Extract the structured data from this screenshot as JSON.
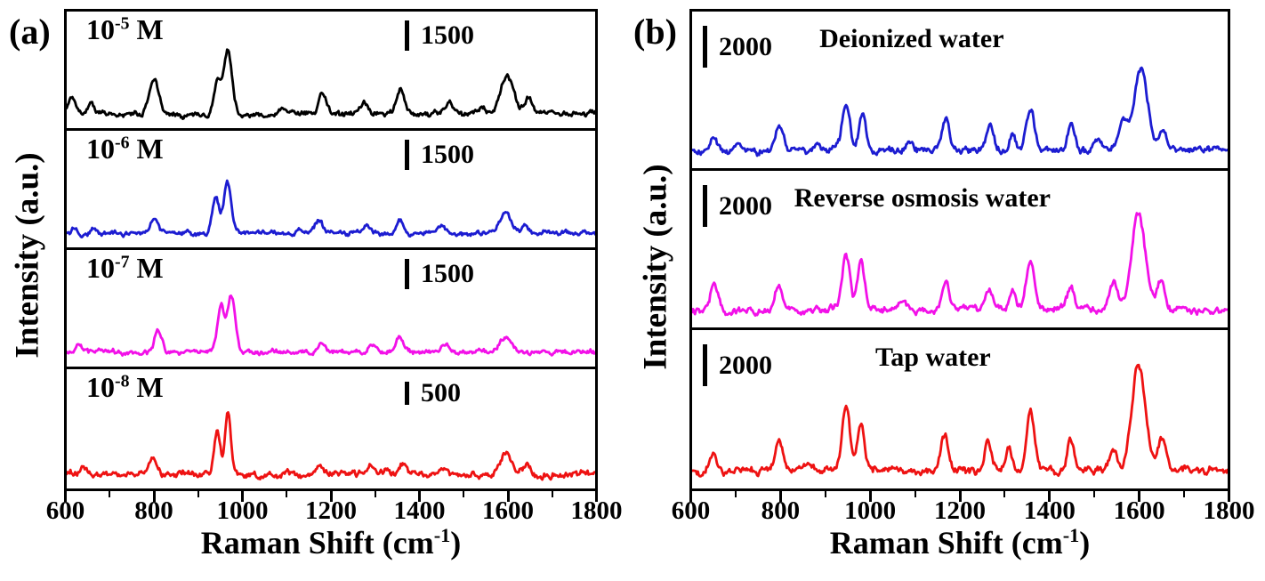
{
  "figure": {
    "panel_a_tag": "(a)",
    "panel_b_tag": "(b)",
    "y_axis_label": "Intensity (a.u.)",
    "x_axis_label": {
      "pre": "Raman Shift (cm",
      "sup": "-1",
      "post": ")"
    }
  },
  "colors": {
    "black": "#000000",
    "blue": "#1c1cd1",
    "magenta": "#f211e8",
    "red": "#ee1212"
  },
  "chart_data": [
    {
      "type": "line",
      "panel": "a",
      "xlabel": "Raman Shift (cm-1)",
      "ylabel": "Intensity (a.u.)",
      "x_range": [
        600,
        1800
      ],
      "x_major_ticks": [
        600,
        800,
        1000,
        1200,
        1400,
        1600,
        1800
      ],
      "x_minor_ticks": [
        700,
        900,
        1100,
        1300,
        1500,
        1700
      ],
      "y_axis": "arbitrary units, stacked offset traces with per-trace intensity scale bars",
      "series": [
        {
          "label": {
            "base": "10",
            "sup": "-5",
            "suffix": " M"
          },
          "color": "#000000",
          "scale_bar": "1500",
          "seed": 11,
          "noise": 3.2,
          "peaks_cm1": [
            [
              612,
              0.28,
              11
            ],
            [
              655,
              0.16,
              9
            ],
            [
              798,
              0.5,
              15
            ],
            [
              942,
              0.52,
              11
            ],
            [
              966,
              1.0,
              13
            ],
            [
              1090,
              0.08,
              12
            ],
            [
              1182,
              0.3,
              13
            ],
            [
              1276,
              0.16,
              11
            ],
            [
              1358,
              0.36,
              13
            ],
            [
              1468,
              0.17,
              13
            ],
            [
              1540,
              0.12,
              12
            ],
            [
              1600,
              0.58,
              20
            ],
            [
              1648,
              0.22,
              13
            ]
          ]
        },
        {
          "label": {
            "base": "10",
            "sup": "-6",
            "suffix": " M"
          },
          "color": "#1c1cd1",
          "scale_bar": "1500",
          "seed": 22,
          "noise": 2.8,
          "peaks_cm1": [
            [
              618,
              0.14,
              10
            ],
            [
              660,
              0.12,
              9
            ],
            [
              800,
              0.3,
              13
            ],
            [
              938,
              0.72,
              11
            ],
            [
              965,
              1.0,
              12
            ],
            [
              1128,
              0.08,
              10
            ],
            [
              1172,
              0.24,
              12
            ],
            [
              1282,
              0.12,
              11
            ],
            [
              1356,
              0.3,
              12
            ],
            [
              1452,
              0.12,
              12
            ],
            [
              1595,
              0.4,
              19
            ],
            [
              1640,
              0.15,
              12
            ]
          ]
        },
        {
          "label": {
            "base": "10",
            "sup": "-7",
            "suffix": " M"
          },
          "color": "#f211e8",
          "scale_bar": "1500",
          "seed": 33,
          "noise": 2.8,
          "peaks_cm1": [
            [
              628,
              0.12,
              10
            ],
            [
              808,
              0.36,
              12
            ],
            [
              950,
              0.8,
              11
            ],
            [
              974,
              1.0,
              12
            ],
            [
              1178,
              0.17,
              12
            ],
            [
              1292,
              0.12,
              11
            ],
            [
              1355,
              0.26,
              12
            ],
            [
              1460,
              0.12,
              13
            ],
            [
              1598,
              0.28,
              20
            ]
          ]
        },
        {
          "label": {
            "base": "10",
            "sup": "-8",
            "suffix": " M"
          },
          "color": "#ee1212",
          "scale_bar": "500",
          "seed": 44,
          "noise": 4.0,
          "peaks_cm1": [
            [
              640,
              0.12,
              10
            ],
            [
              795,
              0.22,
              13
            ],
            [
              942,
              0.7,
              10
            ],
            [
              966,
              1.0,
              9
            ],
            [
              1175,
              0.12,
              12
            ],
            [
              1290,
              0.1,
              11
            ],
            [
              1365,
              0.16,
              13
            ],
            [
              1455,
              0.14,
              13
            ],
            [
              1598,
              0.32,
              17
            ],
            [
              1645,
              0.12,
              11
            ]
          ]
        }
      ]
    },
    {
      "type": "line",
      "panel": "b",
      "xlabel": "Raman Shift (cm-1)",
      "ylabel": "Intensity (a.u.)",
      "x_range": [
        600,
        1800
      ],
      "x_major_ticks": [
        600,
        800,
        1000,
        1200,
        1400,
        1600,
        1800
      ],
      "x_minor_ticks": [
        700,
        900,
        1100,
        1300,
        1500,
        1700
      ],
      "y_axis": "arbitrary units, stacked offset traces with per-trace intensity scale bars",
      "series": [
        {
          "label": "Deionized water",
          "color": "#1c1cd1",
          "scale_bar": "2000",
          "seed": 55,
          "noise": 4.2,
          "peaks_cm1": [
            [
              648,
              0.2,
              11
            ],
            [
              705,
              0.1,
              9
            ],
            [
              795,
              0.3,
              13
            ],
            [
              880,
              0.12,
              10
            ],
            [
              945,
              0.62,
              12
            ],
            [
              982,
              0.42,
              11
            ],
            [
              1085,
              0.12,
              10
            ],
            [
              1168,
              0.4,
              12
            ],
            [
              1268,
              0.3,
              11
            ],
            [
              1318,
              0.18,
              9
            ],
            [
              1358,
              0.55,
              13
            ],
            [
              1450,
              0.35,
              11
            ],
            [
              1508,
              0.18,
              11
            ],
            [
              1565,
              0.35,
              14
            ],
            [
              1605,
              1.0,
              22
            ],
            [
              1655,
              0.25,
              12
            ]
          ]
        },
        {
          "label": "Reverse osmosis water",
          "color": "#f211e8",
          "scale_bar": "2000",
          "seed": 66,
          "noise": 4.2,
          "peaks_cm1": [
            [
              650,
              0.28,
              12
            ],
            [
              795,
              0.25,
              12
            ],
            [
              945,
              0.55,
              12
            ],
            [
              978,
              0.45,
              11
            ],
            [
              1075,
              0.1,
              10
            ],
            [
              1168,
              0.28,
              12
            ],
            [
              1265,
              0.22,
              11
            ],
            [
              1318,
              0.2,
              10
            ],
            [
              1358,
              0.5,
              12
            ],
            [
              1448,
              0.22,
              11
            ],
            [
              1545,
              0.25,
              13
            ],
            [
              1600,
              1.0,
              21
            ],
            [
              1650,
              0.28,
              12
            ]
          ]
        },
        {
          "label": "Tap water",
          "color": "#ee1212",
          "scale_bar": "2000",
          "seed": 77,
          "noise": 4.5,
          "peaks_cm1": [
            [
              648,
              0.16,
              11
            ],
            [
              795,
              0.28,
              12
            ],
            [
              862,
              0.1,
              9
            ],
            [
              945,
              0.6,
              12
            ],
            [
              978,
              0.48,
              11
            ],
            [
              1165,
              0.32,
              11
            ],
            [
              1262,
              0.28,
              10
            ],
            [
              1310,
              0.22,
              9
            ],
            [
              1358,
              0.55,
              12
            ],
            [
              1448,
              0.3,
              11
            ],
            [
              1545,
              0.22,
              12
            ],
            [
              1600,
              1.0,
              21
            ],
            [
              1652,
              0.3,
              12
            ]
          ]
        }
      ]
    }
  ]
}
